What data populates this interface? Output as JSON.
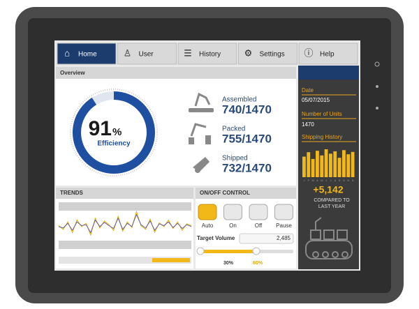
{
  "nav": {
    "items": [
      "Home",
      "User",
      "History",
      "Settings",
      "Help"
    ]
  },
  "overview": {
    "title": "Overview",
    "efficiency": {
      "value": 91,
      "unit": "%",
      "label": "Efficiency"
    },
    "stats": [
      {
        "label": "Assembled",
        "value": "740/1470"
      },
      {
        "label": "Packed",
        "value": "755/1470"
      },
      {
        "label": "Shipped",
        "value": "732/1470"
      }
    ]
  },
  "sidebar": {
    "date_label": "Date",
    "date": "05/07/2015",
    "units_label": "Number of Units",
    "units": 1470,
    "shipping_title": "Shipping History",
    "shipping_values": [
      70,
      85,
      62,
      90,
      74,
      95,
      80,
      88,
      66,
      92,
      78,
      86
    ],
    "months": [
      "J",
      "F",
      "M",
      "A",
      "M",
      "J",
      "J",
      "A",
      "S",
      "O",
      "N",
      "D"
    ],
    "change": "+5,142",
    "change_note": "COMPARED TO LAST YEAR"
  },
  "trends": {
    "title": "TRENDS",
    "series": [
      {
        "color": "#e0b400",
        "values": [
          50,
          42,
          58,
          35,
          62,
          48,
          55,
          30,
          66,
          45,
          60,
          52,
          40,
          70,
          38,
          58,
          46,
          80,
          50,
          42,
          64,
          36,
          56,
          48,
          62,
          44,
          58,
          40,
          54,
          50
        ]
      },
      {
        "color": "#6a5aa0",
        "values": [
          48,
          45,
          55,
          40,
          58,
          50,
          52,
          35,
          62,
          48,
          57,
          50,
          44,
          66,
          42,
          55,
          48,
          74,
          52,
          45,
          60,
          40,
          54,
          50,
          58,
          46,
          55,
          44,
          52,
          48
        ]
      }
    ]
  },
  "control": {
    "title": "ON/OFF CONTROL",
    "buttons": [
      "Auto",
      "On",
      "Off",
      "Pause"
    ],
    "target_label": "Target Volume",
    "target_value": "2,485",
    "slider_labels": [
      "30%",
      "60%"
    ]
  }
}
